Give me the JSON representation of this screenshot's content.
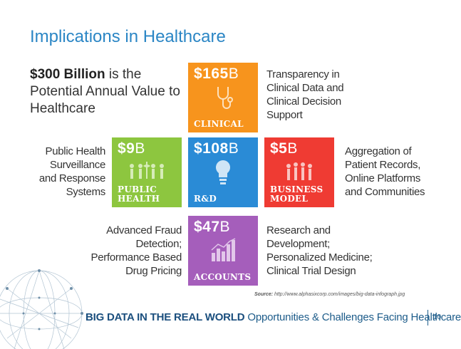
{
  "title": "Implications in Healthcare",
  "headline": {
    "bold": "$300 Billion",
    "rest": " is the Potential Annual Value to Healthcare"
  },
  "tiles": {
    "clinical": {
      "amount": "$165",
      "unit": "B",
      "label": "CLINICAL",
      "color": "#f7941d",
      "icon": "stethoscope-icon"
    },
    "public_health": {
      "amount": "$9",
      "unit": "B",
      "label1": "PUBLIC",
      "label2": "HEALTH",
      "color": "#8dc63f",
      "icon": "people-icon"
    },
    "rd": {
      "amount": "$108",
      "unit": "B",
      "label": "R&D",
      "color": "#2a8bd6",
      "icon": "lightbulb-icon"
    },
    "business": {
      "amount": "$5",
      "unit": "B",
      "label1": "BUSINESS",
      "label2": "MODEL",
      "color": "#ef3b33",
      "icon": "team-icon"
    },
    "accounts": {
      "amount": "$47",
      "unit": "B",
      "label": "ACCOUNTS",
      "color": "#a55ebb",
      "icon": "bar-chart-icon"
    }
  },
  "descriptions": {
    "clinical": [
      "Transparency in",
      "Clinical Data and",
      "Clinical Decision",
      "Support"
    ],
    "public_health": [
      "Public Health",
      "Surveillance",
      "and Response",
      "Systems"
    ],
    "business": [
      "Aggregation of",
      "Patient Records,",
      "Online Platforms",
      "and Communities"
    ],
    "accounts": [
      "Advanced Fraud",
      "Detection;",
      "Performance Based",
      "Drug Pricing"
    ],
    "research": [
      "Research and",
      "Development;",
      "Personalized Medicine;",
      "Clinical Trial Design"
    ]
  },
  "source": {
    "label": "Source:",
    "url": " http://www.alphasixcorp.com/images/big-data-infograph.jpg"
  },
  "footer": {
    "bold": "BIG DATA IN THE REAL WORLD",
    "rest": " Opportunities & Challenges Facing Healthcare",
    "page": "10"
  }
}
